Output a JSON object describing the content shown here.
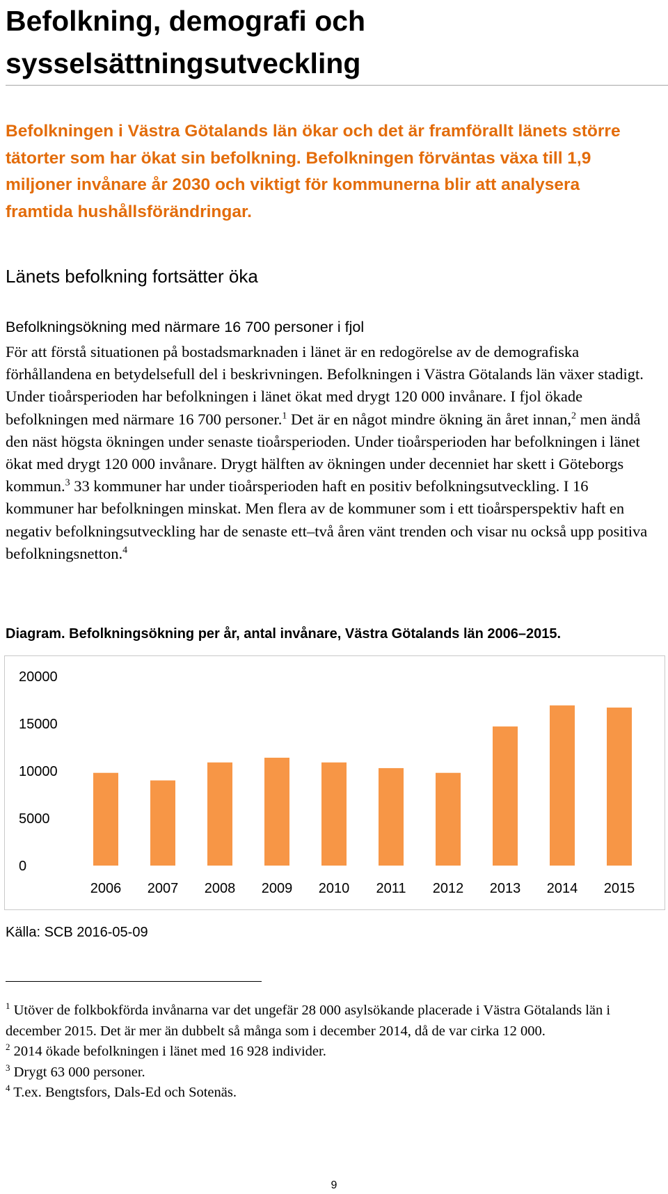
{
  "page": {
    "title": "Befolkning, demografi och sysselsättningsutveckling",
    "lead": "Befolkningen i Västra Götalands län ökar och det är framförallt länets större tätorter som har ökat sin befolkning. Befolkningen förväntas växa till 1,9 miljoner invånare år 2030 och viktigt för kommunerna blir att analysera framtida hushållsförändringar.",
    "section_heading": "Länets befolkning fortsätter öka",
    "subheading": "Befolkningsökning med närmare 16 700 personer i fjol",
    "body": {
      "p1": "För att förstå situationen på bostadsmarknaden i länet är en redogörelse av de demografiska förhållandena en betydelsefull del i beskrivningen. Befolkningen i Västra Götalands län växer stadigt. Under tioårsperioden har befolkningen i länet ökat med drygt 120 000 invånare. I fjol ökade befolkningen med närmare 16 700 personer.",
      "ref1": "1",
      "p2": " Det är en något mindre ökning än året innan,",
      "ref2": "2",
      "p3": " men ändå den näst högsta ökningen under senaste tioårsperioden. Under tioårsperioden har befolkningen i länet ökat med drygt 120 000 invånare. Drygt hälften av ökningen under decenniet har skett i Göteborgs kommun.",
      "ref3": "3",
      "p4": " 33 kommuner har under tioårsperioden haft en positiv befolkningsutveckling. I 16 kommuner har befolkningen minskat. Men flera av de kommuner som i ett tioårsperspektiv haft en negativ befolkningsutveckling har de senaste ett–två åren vänt trenden och visar nu också upp positiva befolkningsnetton.",
      "ref4": "4"
    },
    "caption": "Diagram. Befolkningsökning per år, antal invånare, Västra Götalands län 2006–2015.",
    "source": "Källa: SCB 2016-05-09",
    "footnotes": [
      {
        "num": "1",
        "text": " Utöver de folkbokförda invånarna var det ungefär 28 000 asylsökande placerade i Västra Götalands län i december 2015. Det är mer än dubbelt så många som i december 2014, då de var cirka 12 000."
      },
      {
        "num": "2",
        "text": " 2014 ökade befolkningen i länet med 16 928 individer."
      },
      {
        "num": "3",
        "text": " Drygt 63 000 personer."
      },
      {
        "num": "4",
        "text": " T.ex. Bengtsfors, Dals-Ed och Sotenäs."
      }
    ],
    "page_number": "9"
  },
  "colors": {
    "lead": "#e36c0a",
    "bar": "#f79646"
  },
  "chart_data": {
    "type": "bar",
    "categories": [
      "2006",
      "2007",
      "2008",
      "2009",
      "2010",
      "2011",
      "2012",
      "2013",
      "2014",
      "2015"
    ],
    "values": [
      9800,
      9000,
      10900,
      11400,
      10900,
      10300,
      9800,
      14700,
      16928,
      16700
    ],
    "yticks": [
      "0",
      "5000",
      "10000",
      "15000",
      "20000"
    ],
    "ylim": [
      0,
      20000
    ],
    "grid": false,
    "legend": "none"
  }
}
